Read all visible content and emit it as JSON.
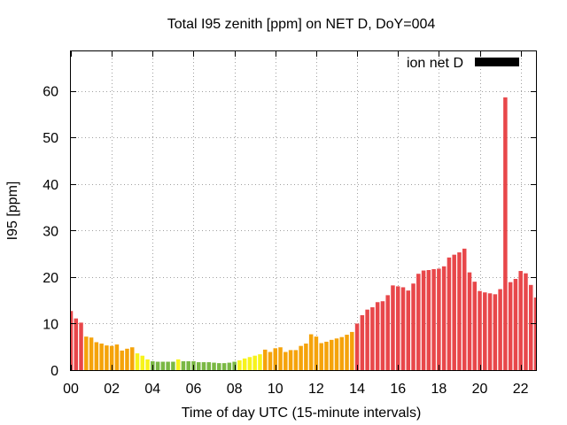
{
  "chart_data": {
    "type": "bar",
    "title": "Total I95 zenith [ppm] on NET D, DoY=004",
    "xlabel": "Time of day UTC (15-minute intervals)",
    "ylabel": "I95 [ppm]",
    "xlim": [
      0,
      22.75
    ],
    "ylim": [
      0,
      68.5
    ],
    "x_ticks": [
      {
        "value": 0,
        "label": "00"
      },
      {
        "value": 2,
        "label": "02"
      },
      {
        "value": 4,
        "label": "04"
      },
      {
        "value": 6,
        "label": "06"
      },
      {
        "value": 8,
        "label": "08"
      },
      {
        "value": 10,
        "label": "10"
      },
      {
        "value": 12,
        "label": "12"
      },
      {
        "value": 14,
        "label": "14"
      },
      {
        "value": 16,
        "label": "16"
      },
      {
        "value": 18,
        "label": "18"
      },
      {
        "value": 20,
        "label": "20"
      },
      {
        "value": 22,
        "label": "22"
      }
    ],
    "y_ticks": [
      {
        "value": 0,
        "label": "0"
      },
      {
        "value": 10,
        "label": "10"
      },
      {
        "value": 20,
        "label": "20"
      },
      {
        "value": 30,
        "label": "30"
      },
      {
        "value": 40,
        "label": "40"
      },
      {
        "value": 50,
        "label": "50"
      },
      {
        "value": 60,
        "label": "60"
      }
    ],
    "grid": true,
    "legend": {
      "label": "ion net D",
      "position": "top-right",
      "color": "#000000"
    },
    "interval_hours": 0.25,
    "colors": {
      "red": "#e8474a",
      "orange": "#f5a30a",
      "yellow": "#f7f31b",
      "green": "#7ab844"
    },
    "series": [
      {
        "values": [
          12.7,
          11.1,
          10.2,
          7.2,
          7.0,
          6.0,
          5.7,
          5.3,
          5.2,
          5.5,
          4.2,
          4.6,
          4.9,
          3.6,
          3.1,
          2.3,
          1.9,
          1.8,
          1.8,
          1.8,
          1.8,
          2.3,
          1.9,
          1.9,
          1.9,
          1.7,
          1.7,
          1.7,
          1.6,
          1.5,
          1.5,
          1.6,
          1.8,
          2.1,
          2.5,
          2.8,
          3.1,
          3.4,
          4.4,
          3.9,
          4.7,
          4.9,
          3.9,
          4.3,
          4.3,
          5.2,
          5.7,
          7.7,
          7.2,
          5.8,
          6.1,
          6.5,
          6.8,
          7.1,
          7.6,
          8.2,
          10.0,
          11.8,
          13.0,
          13.5,
          14.6,
          14.8,
          16.1,
          18.2,
          18.0,
          17.8,
          17.1,
          18.6,
          20.7,
          21.4,
          21.5,
          21.7,
          21.8,
          22.3,
          24.2,
          24.8,
          25.3,
          26.1,
          21.0,
          19.0,
          17.0,
          16.7,
          16.5,
          16.3,
          17.4,
          58.6,
          18.9,
          19.6,
          21.3,
          20.8,
          18.3,
          15.6,
          14.8
        ],
        "colors": [
          "red",
          "red",
          "red",
          "orange",
          "orange",
          "orange",
          "orange",
          "orange",
          "orange",
          "orange",
          "orange",
          "orange",
          "orange",
          "yellow",
          "yellow",
          "yellow",
          "green",
          "green",
          "green",
          "green",
          "green",
          "yellow",
          "green",
          "green",
          "green",
          "green",
          "green",
          "green",
          "green",
          "green",
          "green",
          "green",
          "green",
          "yellow",
          "yellow",
          "yellow",
          "yellow",
          "yellow",
          "orange",
          "orange",
          "orange",
          "orange",
          "orange",
          "orange",
          "orange",
          "orange",
          "orange",
          "orange",
          "orange",
          "orange",
          "orange",
          "orange",
          "orange",
          "orange",
          "orange",
          "orange",
          "red",
          "red",
          "red",
          "red",
          "red",
          "red",
          "red",
          "red",
          "red",
          "red",
          "red",
          "red",
          "red",
          "red",
          "red",
          "red",
          "red",
          "red",
          "red",
          "red",
          "red",
          "red",
          "red",
          "red",
          "red",
          "red",
          "red",
          "red",
          "red",
          "red",
          "red",
          "red",
          "red",
          "red",
          "red",
          "red",
          "red"
        ]
      }
    ]
  }
}
